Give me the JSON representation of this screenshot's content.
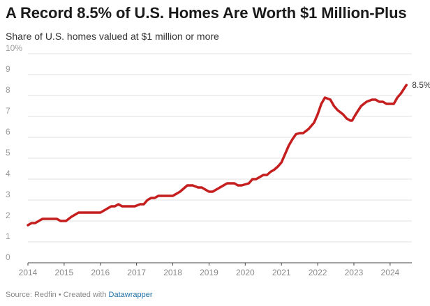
{
  "header": {
    "title": "A Record 8.5% of U.S. Homes Are Worth $1 Million-Plus",
    "subtitle": "Share of U.S. homes valued at $1 million or more"
  },
  "footer": {
    "source": "Source: Redfin • Created with ",
    "tool": "Datawrapper"
  },
  "chart_data": {
    "type": "line",
    "title": "A Record 8.5% of U.S. Homes Are Worth $1 Million-Plus",
    "subtitle": "Share of U.S. homes valued at $1 million or more",
    "xlabel": "",
    "ylabel": "",
    "xlim": [
      2014,
      2024.6
    ],
    "ylim": [
      0,
      10
    ],
    "x_ticks": [
      "2014",
      "2015",
      "2016",
      "2017",
      "2018",
      "2019",
      "2020",
      "2021",
      "2022",
      "2023",
      "2024"
    ],
    "y_ticks": [
      "0",
      "1",
      "2",
      "3",
      "4",
      "5",
      "6",
      "7",
      "8",
      "9",
      "10%"
    ],
    "grid": true,
    "line_color": "#c41e1e",
    "end_label": "8.5%",
    "series": [
      {
        "x": [
          2014.0,
          2014.1,
          2014.2,
          2014.4,
          2014.6,
          2014.8,
          2014.9,
          2015.05,
          2015.2,
          2015.4,
          2015.6,
          2015.8,
          2016.0,
          2016.1,
          2016.3,
          2016.4,
          2016.5,
          2016.6,
          2016.8,
          2016.95,
          2017.1,
          2017.2,
          2017.3,
          2017.4,
          2017.5,
          2017.6,
          2017.8,
          2018.0,
          2018.2,
          2018.4,
          2018.55,
          2018.7,
          2018.8,
          2018.9,
          2019.0,
          2019.1,
          2019.3,
          2019.5,
          2019.7,
          2019.8,
          2019.9,
          2020.1,
          2020.2,
          2020.3,
          2020.5,
          2020.6,
          2020.7,
          2020.8,
          2020.9,
          2021.0,
          2021.1,
          2021.2,
          2021.3,
          2021.4,
          2021.5,
          2021.6,
          2021.75,
          2021.9,
          2022.0,
          2022.1,
          2022.2,
          2022.35,
          2022.45,
          2022.55,
          2022.7,
          2022.8,
          2022.9,
          2022.95,
          2023.05,
          2023.2,
          2023.35,
          2023.5,
          2023.6,
          2023.7,
          2023.8,
          2023.9,
          2024.05,
          2024.1,
          2024.2,
          2024.3,
          2024.45
        ],
        "y": [
          1.8,
          1.9,
          1.9,
          2.1,
          2.1,
          2.1,
          2.0,
          2.0,
          2.2,
          2.4,
          2.4,
          2.4,
          2.4,
          2.5,
          2.7,
          2.7,
          2.8,
          2.7,
          2.7,
          2.7,
          2.8,
          2.8,
          3.0,
          3.1,
          3.1,
          3.2,
          3.2,
          3.2,
          3.4,
          3.7,
          3.7,
          3.6,
          3.6,
          3.5,
          3.4,
          3.4,
          3.6,
          3.8,
          3.8,
          3.7,
          3.7,
          3.8,
          4.0,
          4.0,
          4.2,
          4.2,
          4.35,
          4.45,
          4.6,
          4.8,
          5.2,
          5.6,
          5.9,
          6.15,
          6.2,
          6.2,
          6.4,
          6.7,
          7.1,
          7.6,
          7.9,
          7.8,
          7.5,
          7.3,
          7.1,
          6.9,
          6.8,
          6.8,
          7.1,
          7.5,
          7.7,
          7.8,
          7.8,
          7.7,
          7.7,
          7.6,
          7.6,
          7.6,
          7.9,
          8.1,
          8.5
        ]
      }
    ]
  }
}
